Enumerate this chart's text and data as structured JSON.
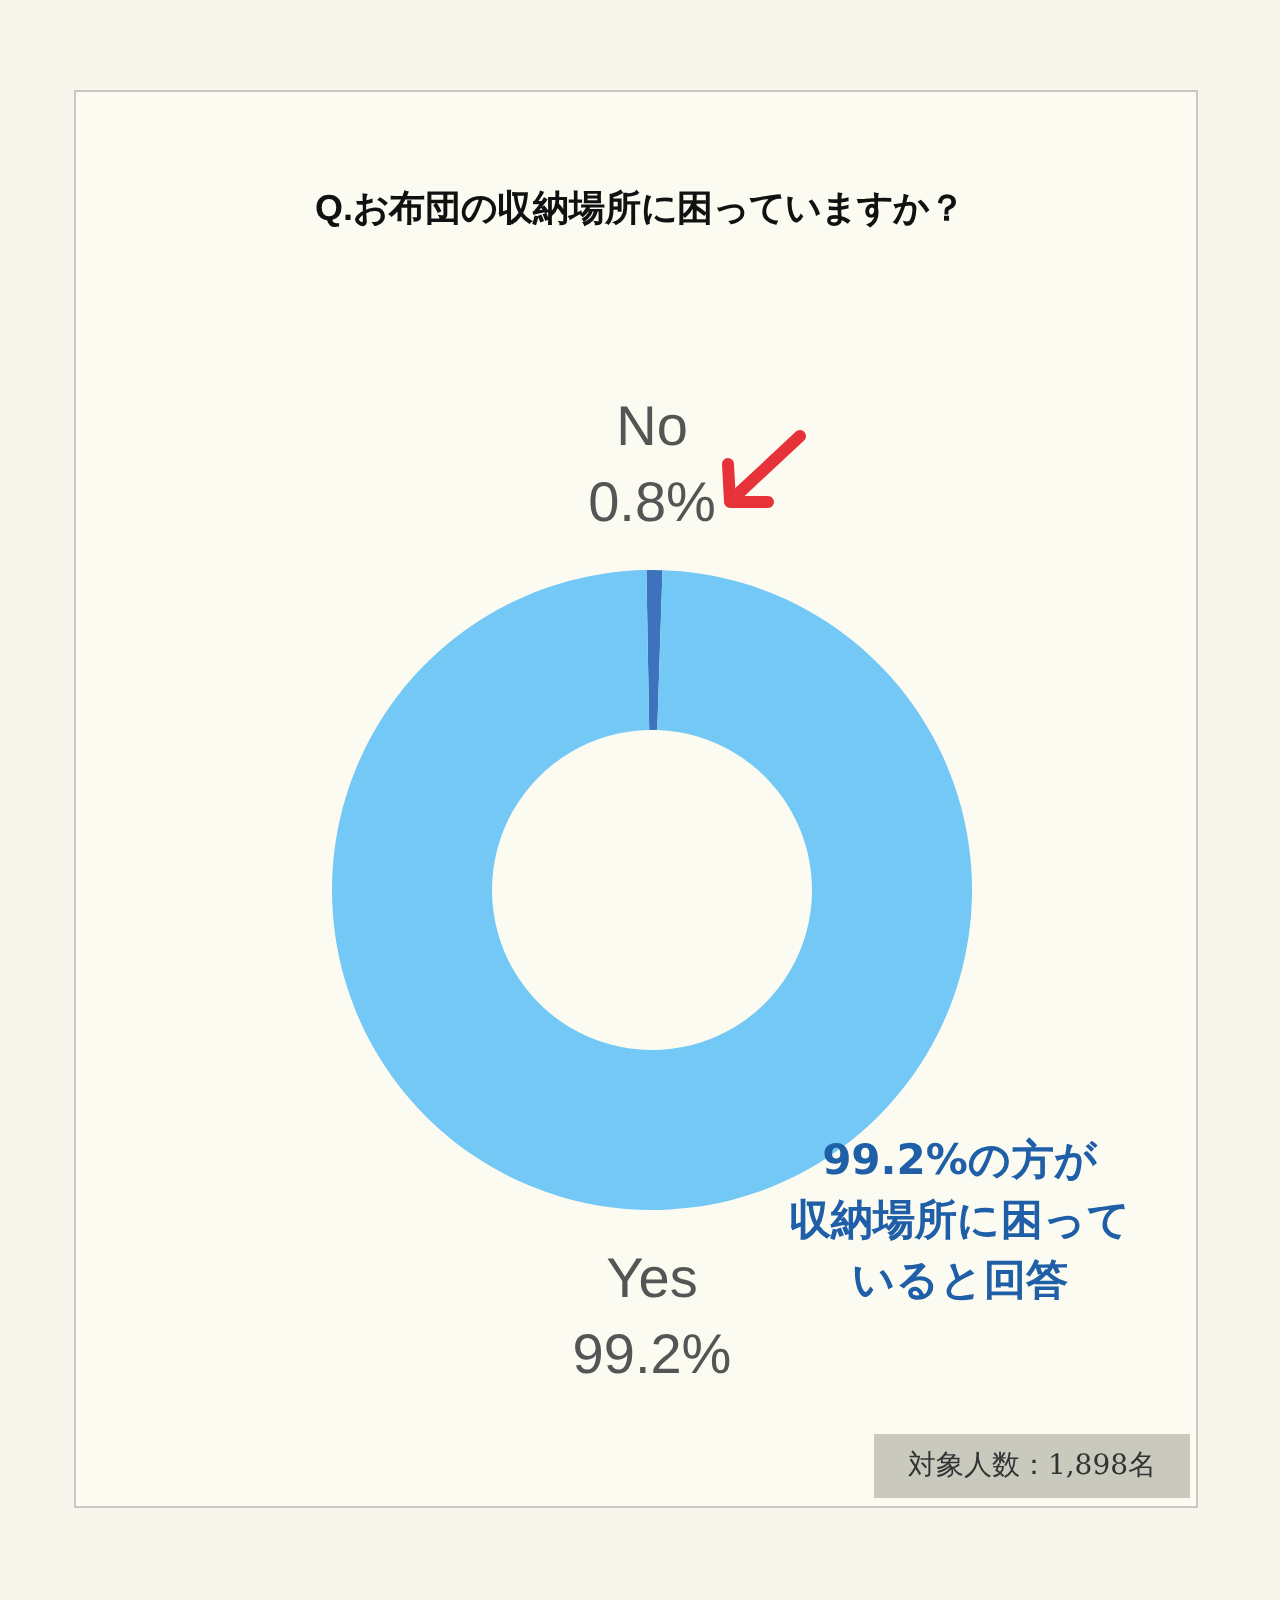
{
  "chart_data": {
    "type": "donut",
    "title": "Q.お布団の収納場所に困っていますか？",
    "categories": [
      "No",
      "Yes"
    ],
    "values": [
      0.8,
      99.2
    ],
    "colors": [
      "#3d73bd",
      "#73c8f6"
    ],
    "value_labels": [
      "0.8%",
      "99.2%"
    ],
    "annotations": [
      "99.2%の方が",
      "収納場所に困って",
      "いると回答",
      "対象人数：1,898名"
    ],
    "legend": false
  }
}
